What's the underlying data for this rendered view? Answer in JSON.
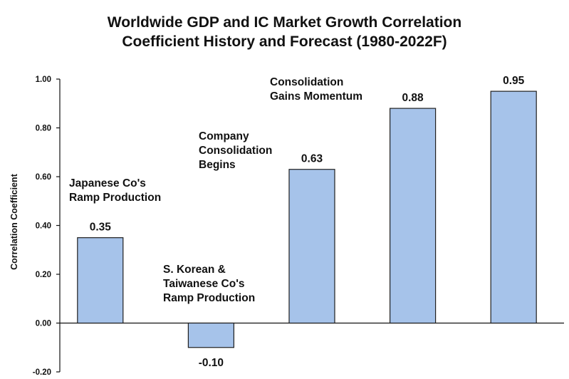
{
  "chart_data": {
    "type": "bar",
    "title": [
      "Worldwide GDP and IC Market Growth Correlation",
      "Coefficient History and Forecast (1980-2022F)"
    ],
    "ylabel": "Correlation Coefficient",
    "ylim": [
      -0.2,
      1.0
    ],
    "yticks": [
      "1.00",
      "0.80",
      "0.60",
      "0.40",
      "0.20",
      "0.00",
      "-0.20"
    ],
    "grid": false,
    "bar_color": "#a6c3ea",
    "bar_edge_color": "#1f1f1f",
    "categories": [
      "",
      "",
      "",
      "",
      ""
    ],
    "values": [
      0.35,
      -0.1,
      0.63,
      0.88,
      0.95
    ],
    "data_labels": [
      "0.35",
      "-0.10",
      "0.63",
      "0.88",
      "0.95"
    ],
    "annotations": [
      {
        "lines": [
          "Japanese Co's",
          "Ramp Production"
        ]
      },
      {
        "lines": [
          "S. Korean &",
          "Taiwanese Co's",
          "Ramp Production"
        ]
      },
      {
        "lines": [
          "Company",
          "Consolidation",
          "Begins"
        ]
      },
      {
        "lines": [
          "Consolidation",
          "Gains Momentum"
        ]
      }
    ]
  }
}
